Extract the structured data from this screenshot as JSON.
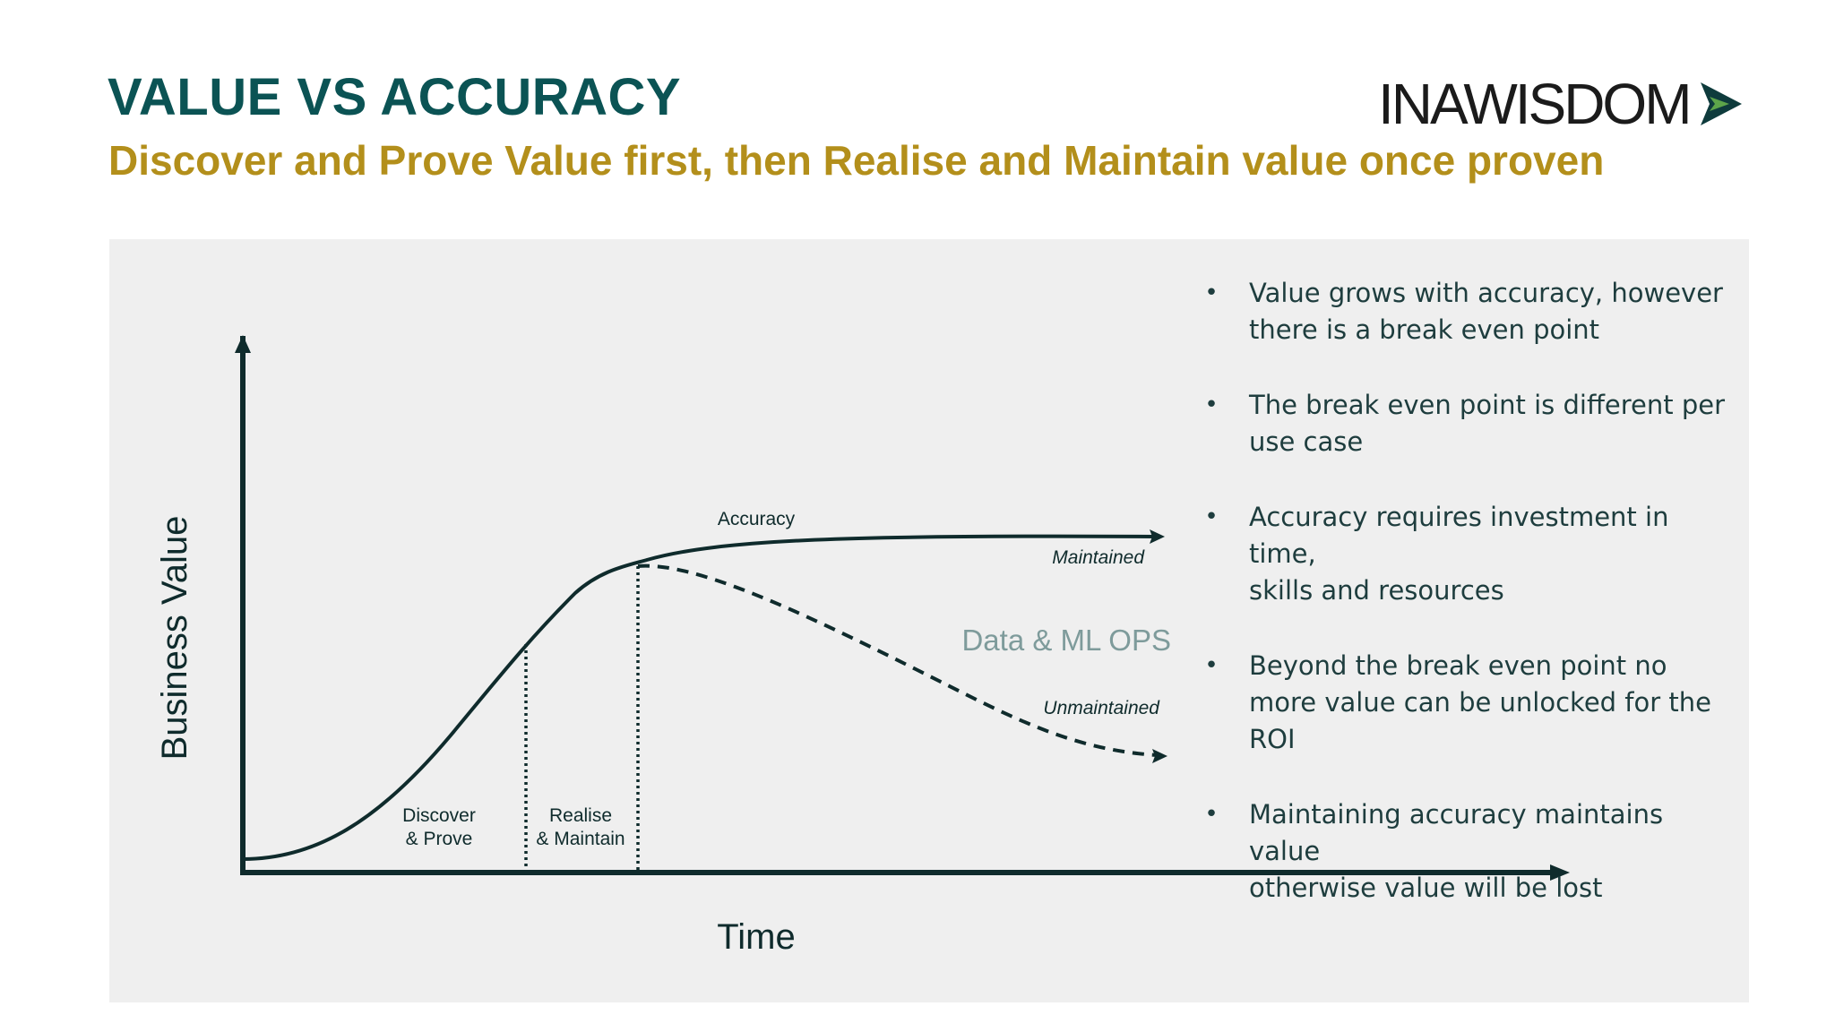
{
  "header": {
    "title": "VALUE VS ACCURACY",
    "subtitle": "Discover and Prove Value first, then Realise and Maintain value once proven"
  },
  "logo": {
    "text": "INAWISDOM",
    "icon": "chevron-arrow-icon",
    "colors": {
      "text": "#1b1b1b",
      "dark": "#0e3b3c",
      "green": "#5da54a"
    }
  },
  "diagram": {
    "y_axis_label": "Business Value",
    "x_axis_label": "Time",
    "curves": [
      {
        "label": "Accuracy",
        "end_label": "Maintained",
        "style": "solid"
      },
      {
        "end_label": "Unmaintained",
        "style": "dashed"
      }
    ],
    "band_label": "Data & ML OPS",
    "phases": [
      {
        "line1": "Discover",
        "line2": "& Prove"
      },
      {
        "line1": "Realise",
        "line2": "& Maintain"
      }
    ]
  },
  "bullets": [
    {
      "lines": [
        "Value grows with accuracy, however",
        "there is a break even point"
      ]
    },
    {
      "lines": [
        "The break even point is different per",
        "use case"
      ]
    },
    {
      "lines": [
        "Accuracy requires investment in time,",
        "skills and resources"
      ]
    },
    {
      "lines": [
        "Beyond the break even point no",
        "more value can be unlocked for the",
        "ROI"
      ]
    },
    {
      "lines": [
        "Maintaining accuracy maintains value",
        "otherwise value will be lost"
      ]
    }
  ],
  "colors": {
    "title": "#0b5354",
    "subtitle": "#b38f1b",
    "panel": "#efefef",
    "diagram_ink": "#0f2b2c",
    "ml_ops": "#7e9b9b",
    "bullet_text": "#1e3d3e"
  }
}
